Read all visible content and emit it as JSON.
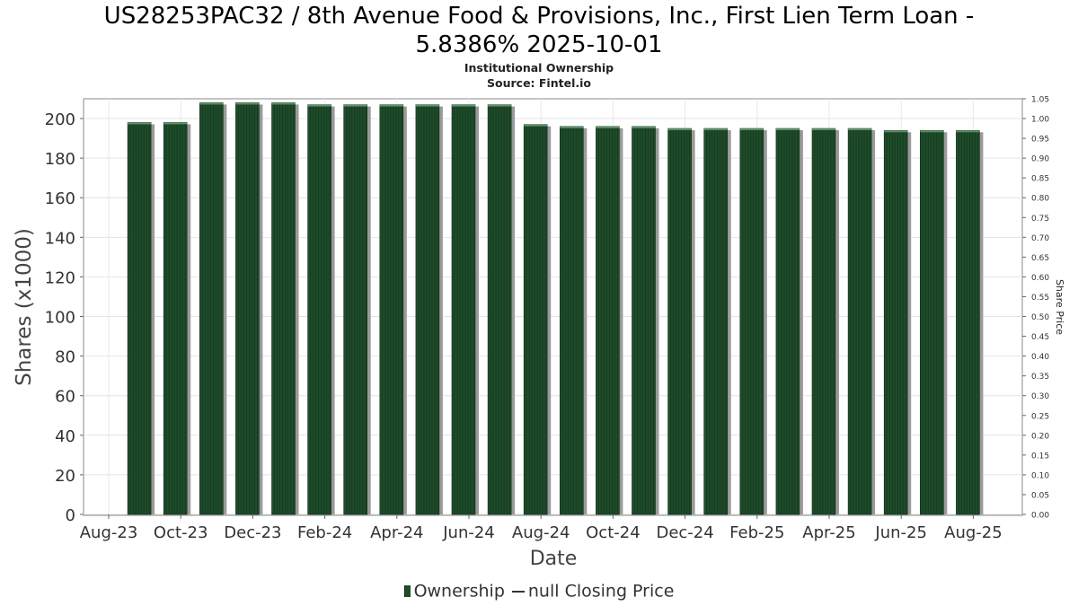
{
  "chart_data": {
    "type": "bar",
    "title_line1": "US28253PAC32 / 8th Avenue Food & Provisions, Inc., First Lien Term Loan -",
    "title_line2": "5.8386% 2025-10-01",
    "subtitle_line1": "Institutional Ownership",
    "subtitle_line2": "Source: Fintel.io",
    "xlabel": "Date",
    "ylabel": "Shares (x1000)",
    "y2label": "Share Price",
    "ylim": [
      0,
      210
    ],
    "y2lim": [
      0,
      1.05
    ],
    "yticks": [
      "0",
      "20",
      "40",
      "60",
      "80",
      "100",
      "120",
      "140",
      "160",
      "180",
      "200"
    ],
    "y2ticks": [
      "0.00",
      "0.05",
      "0.10",
      "0.15",
      "0.20",
      "0.25",
      "0.30",
      "0.35",
      "0.40",
      "0.45",
      "0.50",
      "0.55",
      "0.60",
      "0.65",
      "0.70",
      "0.75",
      "0.80",
      "0.85",
      "0.90",
      "0.95",
      "1.00",
      "1.05"
    ],
    "xticks": [
      "Aug-23",
      "Oct-23",
      "Dec-23",
      "Feb-24",
      "Apr-24",
      "Jun-24",
      "Aug-24",
      "Oct-24",
      "Dec-24",
      "Feb-25",
      "Apr-25",
      "Jun-25",
      "Aug-25"
    ],
    "categories": [
      "Sep-23",
      "Oct-23",
      "Nov-23",
      "Dec-23",
      "Jan-24",
      "Feb-24",
      "Mar-24",
      "Apr-24",
      "May-24",
      "Jun-24",
      "Jul-24",
      "Aug-24",
      "Sep-24",
      "Oct-24",
      "Nov-24",
      "Dec-24",
      "Jan-25",
      "Feb-25",
      "Mar-25",
      "Apr-25",
      "May-25",
      "Jun-25",
      "Jul-25",
      "Aug-25"
    ],
    "series": [
      {
        "name": "Ownership",
        "values": [
          198,
          198,
          208,
          208,
          208,
          207,
          207,
          207,
          207,
          207,
          207,
          197,
          196,
          196,
          196,
          195,
          195,
          195,
          195,
          195,
          195,
          194,
          194,
          194
        ],
        "color": "#1f4d2b"
      }
    ],
    "legend": {
      "bar_label": "Ownership",
      "line_label": "null Closing Price",
      "placement": "bottom-center"
    },
    "grid": true
  }
}
